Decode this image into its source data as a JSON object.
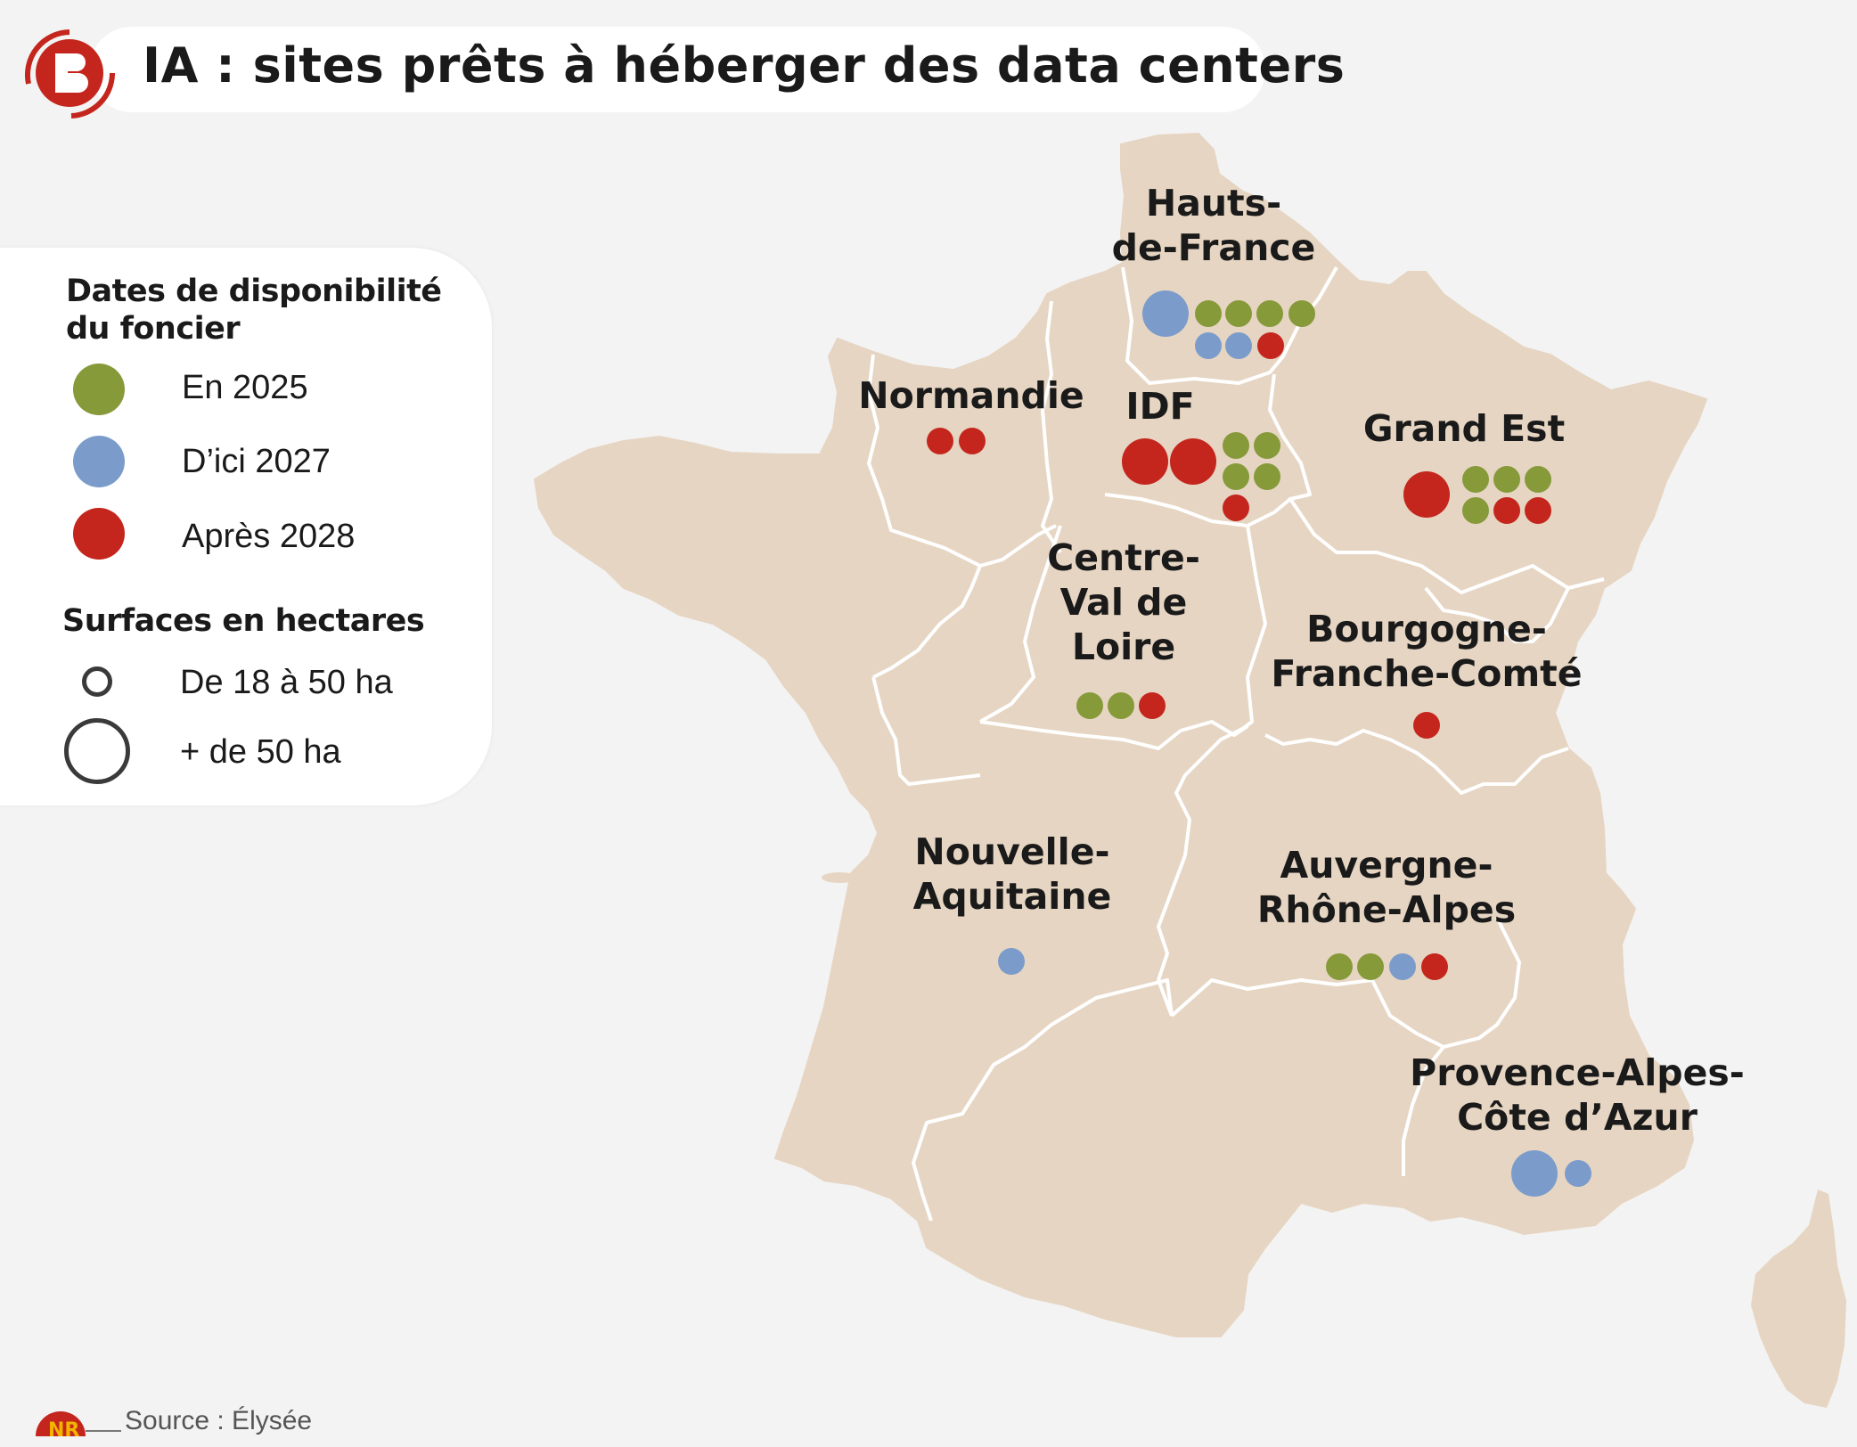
{
  "title": "IA : sites prêts à héberger des data centers",
  "legend": {
    "dates_heading_line1": "Dates de disponibilité",
    "dates_heading_line2": "du foncier",
    "dates": [
      {
        "label": "En 2025",
        "color": "#869a3a"
      },
      {
        "label": "D’ici 2027",
        "color": "#7b9ccb"
      },
      {
        "label": "Après 2028",
        "color": "#c4261d"
      }
    ],
    "surfaces_heading": "Surfaces en hectares",
    "surfaces": [
      {
        "label": "De 18 à 50 ha",
        "size": "small"
      },
      {
        "label": "+ de 50 ha",
        "size": "large"
      }
    ]
  },
  "colors": {
    "land": "#e6d5c2",
    "sea": "#f3f3f3",
    "border": "#ffffff",
    "accent": "#c4261d"
  },
  "regions": [
    {
      "id": "hauts-de-france",
      "name_lines": [
        "Hauts-",
        "de-France"
      ],
      "sites": [
        {
          "period": "D’ici 2027",
          "size": "large"
        },
        {
          "period": "En 2025",
          "size": "small"
        },
        {
          "period": "En 2025",
          "size": "small"
        },
        {
          "period": "En 2025",
          "size": "small"
        },
        {
          "period": "En 2025",
          "size": "small"
        },
        {
          "period": "D’ici 2027",
          "size": "small"
        },
        {
          "period": "D’ici 2027",
          "size": "small"
        },
        {
          "period": "Après 2028",
          "size": "small"
        }
      ]
    },
    {
      "id": "normandie",
      "name_lines": [
        "Normandie"
      ],
      "sites": [
        {
          "period": "Après 2028",
          "size": "small"
        },
        {
          "period": "Après 2028",
          "size": "small"
        }
      ]
    },
    {
      "id": "idf",
      "name_lines": [
        "IDF"
      ],
      "sites": [
        {
          "period": "Après 2028",
          "size": "large"
        },
        {
          "period": "Après 2028",
          "size": "large"
        },
        {
          "period": "En 2025",
          "size": "small"
        },
        {
          "period": "En 2025",
          "size": "small"
        },
        {
          "period": "En 2025",
          "size": "small"
        },
        {
          "period": "En 2025",
          "size": "small"
        },
        {
          "period": "Après 2028",
          "size": "small"
        }
      ]
    },
    {
      "id": "grand-est",
      "name_lines": [
        "Grand Est"
      ],
      "sites": [
        {
          "period": "Après 2028",
          "size": "large"
        },
        {
          "period": "En 2025",
          "size": "small"
        },
        {
          "period": "En 2025",
          "size": "small"
        },
        {
          "period": "En 2025",
          "size": "small"
        },
        {
          "period": "En 2025",
          "size": "small"
        },
        {
          "period": "Après 2028",
          "size": "small"
        },
        {
          "period": "Après 2028",
          "size": "small"
        }
      ]
    },
    {
      "id": "centre-val-de-loire",
      "name_lines": [
        "Centre-",
        "Val de",
        "Loire"
      ],
      "sites": [
        {
          "period": "En 2025",
          "size": "small"
        },
        {
          "period": "En 2025",
          "size": "small"
        },
        {
          "period": "Après 2028",
          "size": "small"
        }
      ]
    },
    {
      "id": "bourgogne-franche-comte",
      "name_lines": [
        "Bourgogne-",
        "Franche-Comté"
      ],
      "sites": [
        {
          "period": "Après 2028",
          "size": "small"
        }
      ]
    },
    {
      "id": "nouvelle-aquitaine",
      "name_lines": [
        "Nouvelle-",
        "Aquitaine"
      ],
      "sites": [
        {
          "period": "D’ici 2027",
          "size": "small"
        }
      ]
    },
    {
      "id": "auvergne-rhone-alpes",
      "name_lines": [
        "Auvergne-",
        "Rhône-Alpes"
      ],
      "sites": [
        {
          "period": "En 2025",
          "size": "small"
        },
        {
          "period": "En 2025",
          "size": "small"
        },
        {
          "period": "D’ici 2027",
          "size": "small"
        },
        {
          "period": "Après 2028",
          "size": "small"
        }
      ]
    },
    {
      "id": "provence-alpes-cote-d-azur",
      "name_lines": [
        "Provence-Alpes-",
        "Côte d’Azur"
      ],
      "sites": [
        {
          "period": "D’ici 2027",
          "size": "large"
        },
        {
          "period": "D’ici 2027",
          "size": "small"
        }
      ]
    }
  ],
  "source": "Source : Élysée"
}
